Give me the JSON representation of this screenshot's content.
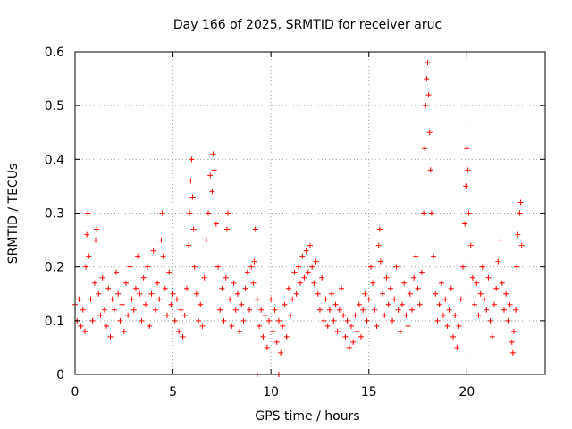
{
  "chart_data": {
    "type": "scatter",
    "title": "Day 166 of 2025, SRMTID for receiver aruc",
    "xlabel": "GPS time / hours",
    "ylabel": "SRMTID / TECUs",
    "xlim": [
      0,
      24
    ],
    "ylim": [
      0,
      0.6
    ],
    "xticks": [
      0,
      5,
      10,
      15,
      20
    ],
    "xtick_labels": [
      "0",
      "5",
      "10",
      "15",
      "20"
    ],
    "yticks": [
      0,
      0.1,
      0.2,
      0.3,
      0.4,
      0.5,
      0.6
    ],
    "ytick_labels": [
      "0",
      "0.1",
      "0.2",
      "0.3",
      "0.4",
      "0.5",
      "0.6"
    ],
    "grid": true,
    "marker": "+",
    "color": "#ff0000",
    "series": [
      {
        "name": "SRMTID",
        "points": [
          [
            0.0,
            0.13
          ],
          [
            0.1,
            0.1
          ],
          [
            0.2,
            0.14
          ],
          [
            0.3,
            0.09
          ],
          [
            0.4,
            0.12
          ],
          [
            0.5,
            0.08
          ],
          [
            0.55,
            0.2
          ],
          [
            0.6,
            0.26
          ],
          [
            0.65,
            0.3
          ],
          [
            0.7,
            0.22
          ],
          [
            0.8,
            0.14
          ],
          [
            0.9,
            0.1
          ],
          [
            1.0,
            0.17
          ],
          [
            1.05,
            0.25
          ],
          [
            1.1,
            0.27
          ],
          [
            1.2,
            0.15
          ],
          [
            1.3,
            0.11
          ],
          [
            1.4,
            0.18
          ],
          [
            1.5,
            0.12
          ],
          [
            1.6,
            0.09
          ],
          [
            1.7,
            0.16
          ],
          [
            1.8,
            0.07
          ],
          [
            1.9,
            0.14
          ],
          [
            2.0,
            0.12
          ],
          [
            2.1,
            0.19
          ],
          [
            2.2,
            0.15
          ],
          [
            2.3,
            0.1
          ],
          [
            2.4,
            0.13
          ],
          [
            2.5,
            0.08
          ],
          [
            2.6,
            0.17
          ],
          [
            2.7,
            0.11
          ],
          [
            2.8,
            0.2
          ],
          [
            2.9,
            0.14
          ],
          [
            3.0,
            0.12
          ],
          [
            3.1,
            0.16
          ],
          [
            3.2,
            0.22
          ],
          [
            3.3,
            0.15
          ],
          [
            3.4,
            0.1
          ],
          [
            3.5,
            0.18
          ],
          [
            3.6,
            0.13
          ],
          [
            3.7,
            0.2
          ],
          [
            3.8,
            0.09
          ],
          [
            3.9,
            0.15
          ],
          [
            4.0,
            0.23
          ],
          [
            4.1,
            0.12
          ],
          [
            4.2,
            0.17
          ],
          [
            4.3,
            0.14
          ],
          [
            4.4,
            0.25
          ],
          [
            4.45,
            0.3
          ],
          [
            4.5,
            0.22
          ],
          [
            4.6,
            0.16
          ],
          [
            4.7,
            0.11
          ],
          [
            4.8,
            0.19
          ],
          [
            4.9,
            0.13
          ],
          [
            5.0,
            0.15
          ],
          [
            5.1,
            0.1
          ],
          [
            5.2,
            0.14
          ],
          [
            5.3,
            0.08
          ],
          [
            5.4,
            0.12
          ],
          [
            5.5,
            0.07
          ],
          [
            5.6,
            0.11
          ],
          [
            5.7,
            0.16
          ],
          [
            5.8,
            0.24
          ],
          [
            5.85,
            0.3
          ],
          [
            5.9,
            0.36
          ],
          [
            5.95,
            0.4
          ],
          [
            6.0,
            0.33
          ],
          [
            6.05,
            0.27
          ],
          [
            6.1,
            0.2
          ],
          [
            6.2,
            0.15
          ],
          [
            6.3,
            0.1
          ],
          [
            6.4,
            0.13
          ],
          [
            6.5,
            0.09
          ],
          [
            6.6,
            0.18
          ],
          [
            6.7,
            0.25
          ],
          [
            6.8,
            0.3
          ],
          [
            6.9,
            0.37
          ],
          [
            7.0,
            0.34
          ],
          [
            7.05,
            0.41
          ],
          [
            7.1,
            0.38
          ],
          [
            7.2,
            0.28
          ],
          [
            7.3,
            0.2
          ],
          [
            7.4,
            0.12
          ],
          [
            7.5,
            0.16
          ],
          [
            7.6,
            0.1
          ],
          [
            7.7,
            0.18
          ],
          [
            7.75,
            0.27
          ],
          [
            7.8,
            0.3
          ],
          [
            7.9,
            0.14
          ],
          [
            8.0,
            0.09
          ],
          [
            8.1,
            0.17
          ],
          [
            8.2,
            0.12
          ],
          [
            8.3,
            0.15
          ],
          [
            8.4,
            0.08
          ],
          [
            8.5,
            0.13
          ],
          [
            8.6,
            0.1
          ],
          [
            8.7,
            0.16
          ],
          [
            8.8,
            0.19
          ],
          [
            8.9,
            0.12
          ],
          [
            9.0,
            0.2
          ],
          [
            9.1,
            0.17
          ],
          [
            9.15,
            0.21
          ],
          [
            9.2,
            0.27
          ],
          [
            9.3,
            0.14
          ],
          [
            9.4,
            0.09
          ],
          [
            9.5,
            0.12
          ],
          [
            9.6,
            0.07
          ],
          [
            9.7,
            0.11
          ],
          [
            9.8,
            0.05
          ],
          [
            9.9,
            0.1
          ],
          [
            10.0,
            0.14
          ],
          [
            10.1,
            0.08
          ],
          [
            10.2,
            0.12
          ],
          [
            10.3,
            0.06
          ],
          [
            10.4,
            0.1
          ],
          [
            10.5,
            0.04
          ],
          [
            10.6,
            0.09
          ],
          [
            10.7,
            0.13
          ],
          [
            10.8,
            0.07
          ],
          [
            10.9,
            0.16
          ],
          [
            11.0,
            0.11
          ],
          [
            11.1,
            0.14
          ],
          [
            11.2,
            0.19
          ],
          [
            11.3,
            0.15
          ],
          [
            11.4,
            0.2
          ],
          [
            11.5,
            0.17
          ],
          [
            11.6,
            0.22
          ],
          [
            11.7,
            0.18
          ],
          [
            11.8,
            0.23
          ],
          [
            11.9,
            0.19
          ],
          [
            12.0,
            0.24
          ],
          [
            12.1,
            0.2
          ],
          [
            12.2,
            0.17
          ],
          [
            12.3,
            0.21
          ],
          [
            12.4,
            0.15
          ],
          [
            12.5,
            0.12
          ],
          [
            12.6,
            0.18
          ],
          [
            12.7,
            0.1
          ],
          [
            12.8,
            0.14
          ],
          [
            12.9,
            0.09
          ],
          [
            13.0,
            0.12
          ],
          [
            13.1,
            0.15
          ],
          [
            13.2,
            0.1
          ],
          [
            13.3,
            0.13
          ],
          [
            13.4,
            0.08
          ],
          [
            13.5,
            0.12
          ],
          [
            13.6,
            0.16
          ],
          [
            13.7,
            0.11
          ],
          [
            13.8,
            0.07
          ],
          [
            13.9,
            0.1
          ],
          [
            14.0,
            0.05
          ],
          [
            14.1,
            0.09
          ],
          [
            14.2,
            0.06
          ],
          [
            14.3,
            0.11
          ],
          [
            14.4,
            0.08
          ],
          [
            14.5,
            0.13
          ],
          [
            14.6,
            0.07
          ],
          [
            14.7,
            0.12
          ],
          [
            14.8,
            0.15
          ],
          [
            14.9,
            0.1
          ],
          [
            15.0,
            0.14
          ],
          [
            15.1,
            0.2
          ],
          [
            15.2,
            0.17
          ],
          [
            15.3,
            0.12
          ],
          [
            15.4,
            0.09
          ],
          [
            15.5,
            0.24
          ],
          [
            15.55,
            0.27
          ],
          [
            15.6,
            0.21
          ],
          [
            15.7,
            0.15
          ],
          [
            15.8,
            0.11
          ],
          [
            15.9,
            0.18
          ],
          [
            16.0,
            0.13
          ],
          [
            16.1,
            0.16
          ],
          [
            16.2,
            0.1
          ],
          [
            16.3,
            0.14
          ],
          [
            16.4,
            0.2
          ],
          [
            16.5,
            0.12
          ],
          [
            16.6,
            0.08
          ],
          [
            16.7,
            0.13
          ],
          [
            16.8,
            0.17
          ],
          [
            16.9,
            0.11
          ],
          [
            17.0,
            0.09
          ],
          [
            17.1,
            0.15
          ],
          [
            17.2,
            0.12
          ],
          [
            17.3,
            0.18
          ],
          [
            17.4,
            0.22
          ],
          [
            17.5,
            0.16
          ],
          [
            17.6,
            0.13
          ],
          [
            17.7,
            0.19
          ],
          [
            17.8,
            0.3
          ],
          [
            17.85,
            0.42
          ],
          [
            17.9,
            0.5
          ],
          [
            17.95,
            0.55
          ],
          [
            18.0,
            0.58
          ],
          [
            18.05,
            0.52
          ],
          [
            18.1,
            0.45
          ],
          [
            18.15,
            0.38
          ],
          [
            18.2,
            0.3
          ],
          [
            18.3,
            0.22
          ],
          [
            18.4,
            0.15
          ],
          [
            18.5,
            0.1
          ],
          [
            18.6,
            0.13
          ],
          [
            18.7,
            0.17
          ],
          [
            18.8,
            0.11
          ],
          [
            18.9,
            0.14
          ],
          [
            19.0,
            0.09
          ],
          [
            19.1,
            0.12
          ],
          [
            19.2,
            0.16
          ],
          [
            19.3,
            0.07
          ],
          [
            19.4,
            0.11
          ],
          [
            19.5,
            0.05
          ],
          [
            19.6,
            0.09
          ],
          [
            19.7,
            0.14
          ],
          [
            19.8,
            0.2
          ],
          [
            19.9,
            0.28
          ],
          [
            19.95,
            0.35
          ],
          [
            20.0,
            0.42
          ],
          [
            20.05,
            0.38
          ],
          [
            20.1,
            0.3
          ],
          [
            20.2,
            0.24
          ],
          [
            20.3,
            0.18
          ],
          [
            20.4,
            0.13
          ],
          [
            20.5,
            0.17
          ],
          [
            20.6,
            0.11
          ],
          [
            20.7,
            0.15
          ],
          [
            20.8,
            0.2
          ],
          [
            20.9,
            0.14
          ],
          [
            21.0,
            0.12
          ],
          [
            21.1,
            0.18
          ],
          [
            21.2,
            0.1
          ],
          [
            21.3,
            0.07
          ],
          [
            21.4,
            0.13
          ],
          [
            21.5,
            0.16
          ],
          [
            21.6,
            0.21
          ],
          [
            21.7,
            0.25
          ],
          [
            21.8,
            0.17
          ],
          [
            21.9,
            0.12
          ],
          [
            22.0,
            0.15
          ],
          [
            22.1,
            0.1
          ],
          [
            22.2,
            0.13
          ],
          [
            22.3,
            0.06
          ],
          [
            22.35,
            0.04
          ],
          [
            22.4,
            0.08
          ],
          [
            22.5,
            0.12
          ],
          [
            22.55,
            0.2
          ],
          [
            22.6,
            0.26
          ],
          [
            22.7,
            0.3
          ],
          [
            22.75,
            0.32
          ],
          [
            22.8,
            0.24
          ],
          [
            9.3,
            0.0
          ],
          [
            10.4,
            0.0
          ]
        ]
      }
    ]
  }
}
